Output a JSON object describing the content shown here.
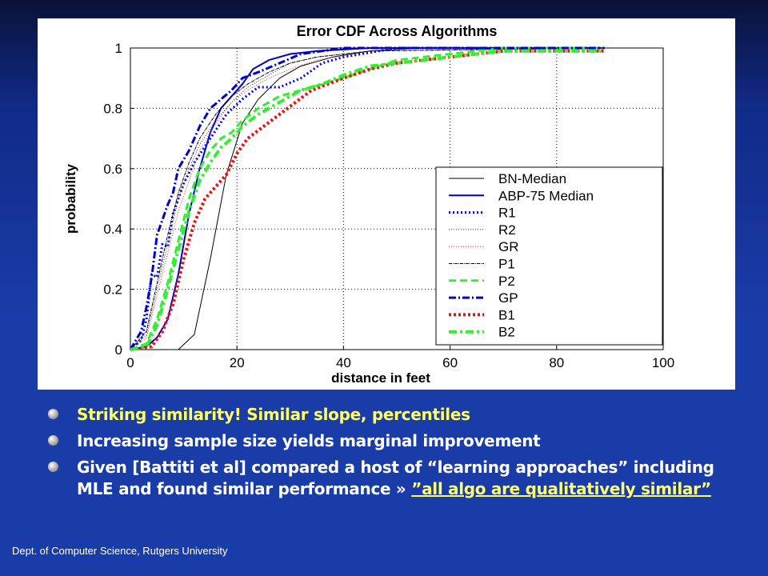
{
  "chart_data": {
    "type": "line",
    "title": "Error CDF Across Algorithms",
    "xlabel": "distance in feet",
    "ylabel": "probability",
    "xlim": [
      0,
      100
    ],
    "ylim": [
      0,
      1
    ],
    "xticks": [
      "0",
      "20",
      "40",
      "60",
      "80",
      "100"
    ],
    "yticks": [
      "0",
      "0.2",
      "0.4",
      "0.6",
      "0.8",
      "1"
    ],
    "grid": true,
    "legend_position": "lower-right",
    "series": [
      {
        "name": "BN-Median",
        "color": "#000000",
        "style": "solid-thin",
        "x": [
          0,
          9,
          12,
          15,
          18,
          21,
          24,
          28,
          32,
          38,
          45,
          55,
          89
        ],
        "y": [
          0,
          0,
          0.05,
          0.3,
          0.58,
          0.75,
          0.83,
          0.9,
          0.94,
          0.97,
          0.99,
          1.0,
          1.0
        ]
      },
      {
        "name": "ABP-75 Median",
        "color": "#0000cc",
        "style": "solid",
        "x": [
          0,
          3,
          5,
          7,
          9,
          11,
          13,
          15,
          17,
          19,
          21,
          23,
          26,
          30,
          35,
          45,
          89
        ],
        "y": [
          0,
          0.01,
          0.04,
          0.1,
          0.25,
          0.45,
          0.6,
          0.72,
          0.8,
          0.84,
          0.88,
          0.93,
          0.96,
          0.98,
          0.99,
          1.0,
          1.0
        ]
      },
      {
        "name": "R1",
        "color": "#0000ff",
        "style": "dotted",
        "x": [
          0,
          2,
          3,
          4,
          5,
          6,
          7,
          8,
          10,
          12,
          15,
          18,
          21,
          24,
          28,
          32,
          36,
          40,
          50,
          89
        ],
        "y": [
          0,
          0.03,
          0.1,
          0.25,
          0.24,
          0.35,
          0.34,
          0.45,
          0.55,
          0.62,
          0.7,
          0.78,
          0.83,
          0.87,
          0.87,
          0.9,
          0.95,
          0.97,
          1.0,
          1.0
        ]
      },
      {
        "name": "R2",
        "color": "#333333",
        "style": "dotted-thin",
        "x": [
          0,
          3,
          5,
          7,
          9,
          11,
          13,
          16,
          19,
          22,
          26,
          30,
          35,
          45,
          89
        ],
        "y": [
          0,
          0.05,
          0.2,
          0.35,
          0.5,
          0.6,
          0.68,
          0.76,
          0.82,
          0.87,
          0.91,
          0.95,
          0.97,
          0.99,
          1.0
        ]
      },
      {
        "name": "GR",
        "color": "#cc3333",
        "style": "dotted-thin",
        "x": [
          0,
          3,
          5,
          7,
          9,
          11,
          13,
          16,
          19,
          22,
          26,
          30,
          35,
          45,
          89
        ],
        "y": [
          0,
          0.04,
          0.18,
          0.32,
          0.46,
          0.56,
          0.66,
          0.75,
          0.82,
          0.86,
          0.9,
          0.93,
          0.96,
          0.99,
          1.0
        ]
      },
      {
        "name": "P1",
        "color": "#000000",
        "style": "dashdot-thin",
        "x": [
          0,
          3,
          5,
          7,
          9,
          11,
          13,
          16,
          19,
          22,
          26,
          30,
          35,
          45,
          89
        ],
        "y": [
          0,
          0.06,
          0.22,
          0.38,
          0.52,
          0.62,
          0.7,
          0.78,
          0.84,
          0.88,
          0.92,
          0.95,
          0.97,
          0.99,
          1.0
        ]
      },
      {
        "name": "P2",
        "color": "#33ee33",
        "style": "dashed",
        "x": [
          0,
          3,
          5,
          7,
          9,
          11,
          13,
          15,
          17,
          19,
          21,
          24,
          28,
          32,
          36,
          40,
          45,
          50,
          55,
          60,
          65,
          70,
          89
        ],
        "y": [
          0,
          0.02,
          0.1,
          0.22,
          0.36,
          0.5,
          0.6,
          0.66,
          0.7,
          0.72,
          0.76,
          0.8,
          0.84,
          0.86,
          0.88,
          0.9,
          0.93,
          0.96,
          0.97,
          0.98,
          0.99,
          1.0,
          1.0
        ]
      },
      {
        "name": "GP",
        "color": "#0000cc",
        "style": "dashdot",
        "x": [
          0,
          2,
          3,
          4,
          5,
          6,
          7,
          8,
          9,
          11,
          13,
          15,
          17,
          19,
          21,
          24,
          28,
          32,
          40,
          89
        ],
        "y": [
          0,
          0.06,
          0.14,
          0.24,
          0.38,
          0.43,
          0.48,
          0.52,
          0.6,
          0.66,
          0.74,
          0.8,
          0.83,
          0.86,
          0.9,
          0.92,
          0.95,
          0.98,
          1.0,
          1.0
        ]
      },
      {
        "name": "B1",
        "color": "#ee1111",
        "style": "dotted-thick",
        "x": [
          0,
          4,
          6,
          8,
          10,
          12,
          14,
          16,
          18,
          20,
          22,
          25,
          28,
          31,
          34,
          37,
          40,
          45,
          50,
          55,
          60,
          65,
          70,
          89
        ],
        "y": [
          0,
          0.01,
          0.06,
          0.15,
          0.3,
          0.42,
          0.5,
          0.54,
          0.58,
          0.65,
          0.7,
          0.74,
          0.78,
          0.82,
          0.86,
          0.88,
          0.9,
          0.93,
          0.95,
          0.96,
          0.97,
          0.98,
          0.99,
          0.99
        ]
      },
      {
        "name": "B2",
        "color": "#33ee33",
        "style": "dashdot-thick",
        "x": [
          0,
          3,
          5,
          7,
          9,
          11,
          13,
          15,
          17,
          19,
          21,
          24,
          28,
          32,
          36,
          40,
          45,
          50,
          55,
          60,
          65,
          70,
          89
        ],
        "y": [
          0,
          0.01,
          0.08,
          0.2,
          0.33,
          0.46,
          0.56,
          0.62,
          0.67,
          0.7,
          0.74,
          0.78,
          0.82,
          0.86,
          0.88,
          0.91,
          0.94,
          0.95,
          0.96,
          0.97,
          0.98,
          0.99,
          0.99
        ]
      }
    ]
  },
  "bullets": [
    {
      "text": "Striking similarity! Similar slope,  percentiles",
      "highlight": true
    },
    {
      "text": "Increasing sample size yields marginal improvement",
      "highlight": false
    },
    {
      "text_before": "Given [Battiti et al] compared a host of “learning approaches” including MLE and found similar performance » ",
      "text_highlight": "”all algo are qualitatively similar”"
    }
  ],
  "footer": "Dept. of Computer Science, Rutgers University"
}
